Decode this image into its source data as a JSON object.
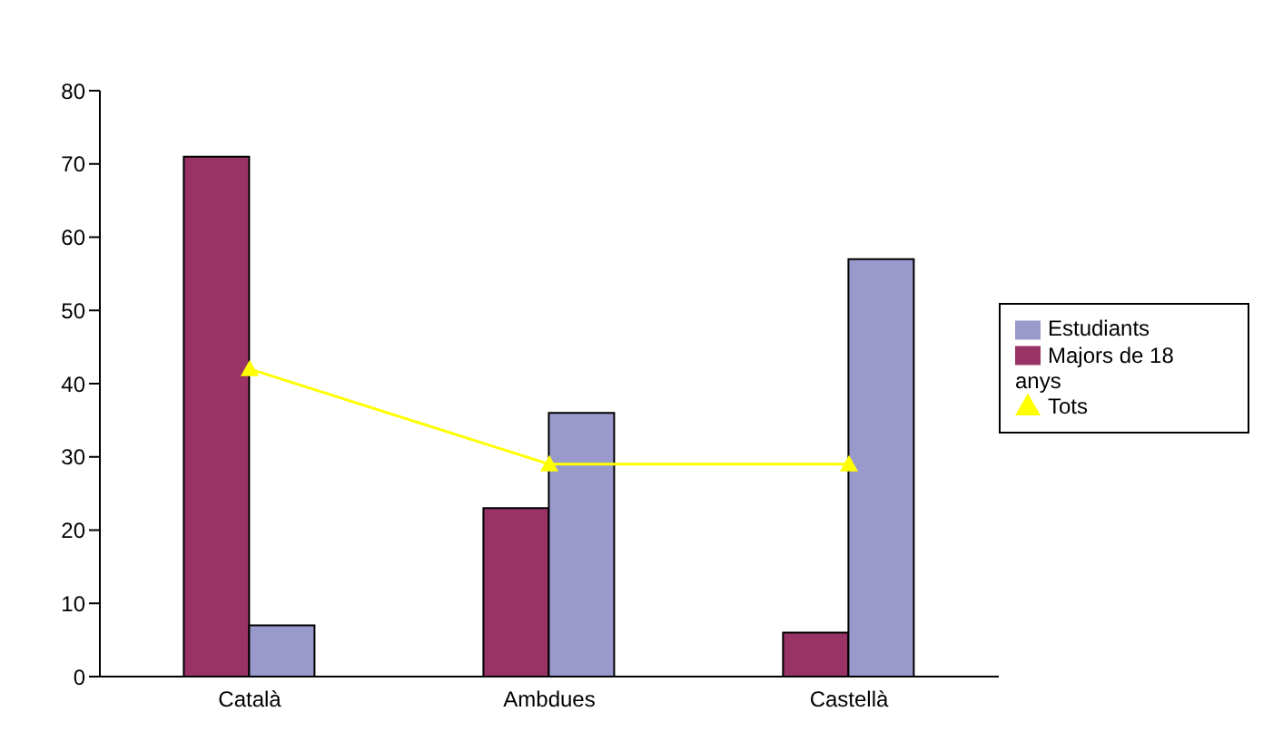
{
  "chart_data": {
    "type": "bar",
    "categories": [
      "Català",
      "Ambdues",
      "Castellà"
    ],
    "series": [
      {
        "name": "Majors de 18 anys",
        "color": "#993366",
        "values": [
          71,
          23,
          6
        ]
      },
      {
        "name": "Estudiants",
        "color": "#9999cc",
        "values": [
          7,
          36,
          57
        ]
      },
      {
        "name": "Tots",
        "type": "line",
        "color": "#ffff00",
        "values": [
          42,
          29,
          29
        ],
        "marker": "triangle"
      }
    ],
    "ylim": [
      0,
      80
    ],
    "yticks": [
      0,
      10,
      20,
      30,
      40,
      50,
      60,
      70,
      80
    ],
    "grid": false,
    "legend": "right"
  }
}
